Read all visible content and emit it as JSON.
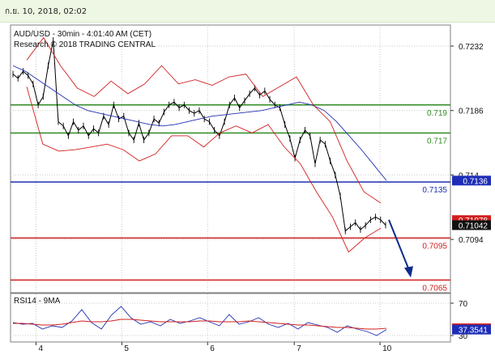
{
  "header": {
    "timestamp": "ก.ย. 10, 2018, 02:02"
  },
  "chart_data": [
    {
      "type": "line",
      "title": "AUD/USD - 30min - 4:01:40 AM (CET)",
      "subtitle": "Research © 2018 TRADING CENTRAL",
      "x_ticks": [
        "4",
        "5",
        "6",
        "7",
        "10"
      ],
      "ylim": [
        0.7056,
        0.7247
      ],
      "y_ticks": [
        "0.7232",
        "0.7186",
        "0.714",
        "0.7094"
      ],
      "levels": [
        {
          "label": "0.719",
          "value": 0.719,
          "color": "#2e8b22"
        },
        {
          "label": "0.717",
          "value": 0.717,
          "color": "#2e8b22"
        },
        {
          "label": "0.7135",
          "value": 0.7135,
          "color": "#1f2fb0"
        },
        {
          "label": "0.7095",
          "value": 0.7095,
          "color": "#d11f1f"
        },
        {
          "label": "0.7065",
          "value": 0.7065,
          "color": "#d11f1f"
        }
      ],
      "price_badges": [
        {
          "label": "0.7136",
          "value": 0.7136,
          "bg": "#1d2db8",
          "fg": "#ffffff"
        },
        {
          "label": "0.71078",
          "value": 0.71078,
          "bg": "#d11f1f",
          "fg": "#ffffff"
        },
        {
          "label": "0.71042",
          "value": 0.71042,
          "bg": "#111111",
          "fg": "#ffffff"
        }
      ],
      "series": [
        {
          "name": "price",
          "color": "#000000",
          "values": [
            0.7212,
            0.7209,
            0.7214,
            0.7211,
            0.7205,
            0.719,
            0.7196,
            0.7218,
            0.7236,
            0.7178,
            0.7175,
            0.7168,
            0.7178,
            0.7172,
            0.7175,
            0.7168,
            0.7173,
            0.717,
            0.7182,
            0.7176,
            0.719,
            0.718,
            0.7182,
            0.717,
            0.7165,
            0.7177,
            0.7165,
            0.717,
            0.718,
            0.7177,
            0.7185,
            0.719,
            0.7192,
            0.7188,
            0.719,
            0.7186,
            0.7184,
            0.7186,
            0.718,
            0.7178,
            0.7172,
            0.7168,
            0.7178,
            0.719,
            0.7195,
            0.7188,
            0.7193,
            0.7198,
            0.7202,
            0.7197,
            0.72,
            0.7194,
            0.719,
            0.7188,
            0.7176,
            0.7166,
            0.7152,
            0.7165,
            0.7172,
            0.7168,
            0.7148,
            0.7165,
            0.7162,
            0.715,
            0.714,
            0.7125,
            0.71,
            0.7103,
            0.7106,
            0.7101,
            0.7104,
            0.7108,
            0.711,
            0.7108,
            0.71042
          ]
        },
        {
          "name": "moving average",
          "color": "#1f2fb0",
          "values": [
            0.7218,
            0.7214,
            0.7208,
            0.7202,
            0.7196,
            0.719,
            0.7186,
            0.7184,
            0.7182,
            0.718,
            0.7178,
            0.7176,
            0.7175,
            0.7176,
            0.7178,
            0.718,
            0.7182,
            0.7183,
            0.7184,
            0.7185,
            0.7186,
            0.7188,
            0.719,
            0.7192,
            0.719,
            0.7186,
            0.7178,
            0.7168,
            0.7158,
            0.7147,
            0.7136
          ]
        },
        {
          "name": "bollinger upper",
          "color": "#d11f1f",
          "values": [
            0.7222,
            0.7238,
            0.7218,
            0.7202,
            0.7196,
            0.7207,
            0.7198,
            0.7205,
            0.7218,
            0.7205,
            0.7208,
            0.7204,
            0.721,
            0.7212,
            0.7196,
            0.7203,
            0.721,
            0.719,
            0.7178,
            0.715,
            0.7128,
            0.712
          ]
        },
        {
          "name": "bollinger lower",
          "color": "#d11f1f",
          "values": [
            0.7203,
            0.7162,
            0.7157,
            0.7158,
            0.716,
            0.7162,
            0.7158,
            0.715,
            0.7155,
            0.7168,
            0.7168,
            0.716,
            0.717,
            0.7175,
            0.717,
            0.7176,
            0.716,
            0.7148,
            0.7128,
            0.711,
            0.7085,
            0.7095,
            0.7102
          ]
        }
      ],
      "forecast": {
        "from": 0.7108,
        "to": 0.7068,
        "color": "#0d2b8c"
      }
    },
    {
      "type": "line",
      "title": "RSI14 - 9MA",
      "ylim": [
        22,
        82
      ],
      "y_ticks": [
        "70",
        "30"
      ],
      "badges": [
        {
          "label": "38.9156",
          "value": 38.9156,
          "bg": "#d11f1f",
          "fg": "#ffffff"
        },
        {
          "label": "37.3541",
          "value": 37.3541,
          "bg": "#1d2db8",
          "fg": "#ffffff"
        }
      ],
      "series": [
        {
          "name": "RSI14",
          "color": "#1f2fb0",
          "values": [
            46,
            44,
            45,
            38,
            42,
            40,
            48,
            62,
            46,
            38,
            55,
            66,
            52,
            44,
            47,
            42,
            50,
            45,
            48,
            52,
            47,
            42,
            56,
            44,
            47,
            52,
            44,
            40,
            45,
            38,
            46,
            43,
            40,
            34,
            42,
            38,
            35,
            30,
            37.35
          ]
        },
        {
          "name": "9MA",
          "color": "#d11f1f",
          "values": [
            45,
            45,
            44,
            43,
            43,
            44,
            46,
            48,
            47,
            47,
            48,
            50,
            50,
            49,
            48,
            47,
            47,
            47,
            47,
            48,
            48,
            47,
            47,
            47,
            48,
            47,
            46,
            45,
            44,
            43,
            43,
            42,
            41,
            40,
            40,
            39,
            38,
            38,
            38.92
          ]
        }
      ]
    }
  ]
}
